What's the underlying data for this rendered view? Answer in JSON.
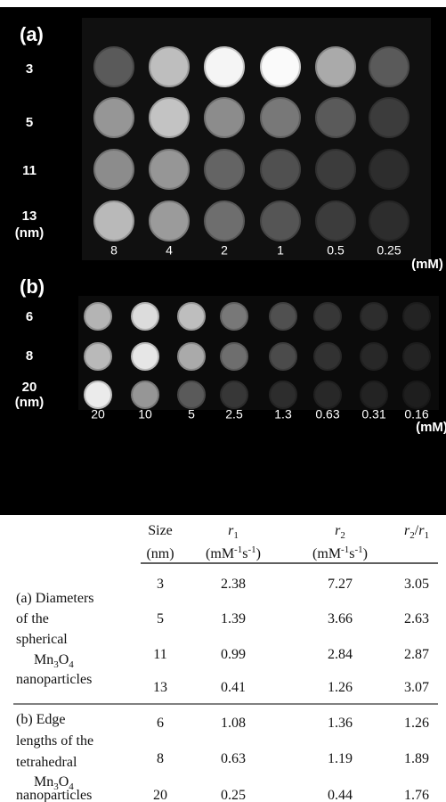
{
  "panel_a": {
    "label": "(a)",
    "row_labels": [
      "3",
      "5",
      "11",
      "13"
    ],
    "row_unit": "(nm)",
    "column_labels": [
      "8",
      "4",
      "2",
      "1",
      "0.5",
      "0.25"
    ],
    "column_unit": "(mM)"
  },
  "panel_b": {
    "label": "(b)",
    "row_labels": [
      "6",
      "8",
      "20"
    ],
    "row_unit": "(nm)",
    "column_labels": [
      "20",
      "10",
      "5",
      "2.5",
      "1.3",
      "0.63",
      "0.31",
      "0.16"
    ],
    "column_unit": "(mM)"
  },
  "table": {
    "size_header": [
      "Size",
      "(nm)"
    ],
    "r1_header": {
      "symbol": "r",
      "index": "1",
      "unit": [
        "(mM",
        "-1",
        "s",
        "-1",
        ")"
      ]
    },
    "r2_header": {
      "symbol": "r",
      "index": "2",
      "unit": [
        "(mM",
        "-1",
        "s",
        "-1",
        ")"
      ]
    },
    "ratio_header": {
      "numerator": {
        "symbol": "r",
        "index": "2"
      },
      "separator": "/",
      "denominator": {
        "symbol": "r",
        "index": "1"
      }
    },
    "groups": [
      {
        "label": [
          "(a) Diameters",
          "of the",
          "spherical"
        ],
        "formula": [
          "Mn",
          "3",
          "O",
          "4"
        ],
        "label_end": "nanoparticles",
        "rows": [
          [
            3,
            2.38,
            7.27,
            3.05
          ],
          [
            5,
            1.39,
            3.66,
            2.63
          ],
          [
            11,
            0.99,
            2.84,
            2.87
          ],
          [
            13,
            0.41,
            1.26,
            3.07
          ]
        ]
      },
      {
        "label": [
          "(b) Edge",
          "lengths of the",
          "tetrahedral"
        ],
        "formula": [
          "Mn",
          "3",
          "O",
          "4"
        ],
        "label_end": "nanoparticles",
        "rows": [
          [
            6,
            1.08,
            1.36,
            1.26
          ],
          [
            8,
            0.63,
            1.19,
            1.89
          ],
          [
            20,
            0.25,
            0.44,
            1.76
          ]
        ]
      }
    ]
  }
}
